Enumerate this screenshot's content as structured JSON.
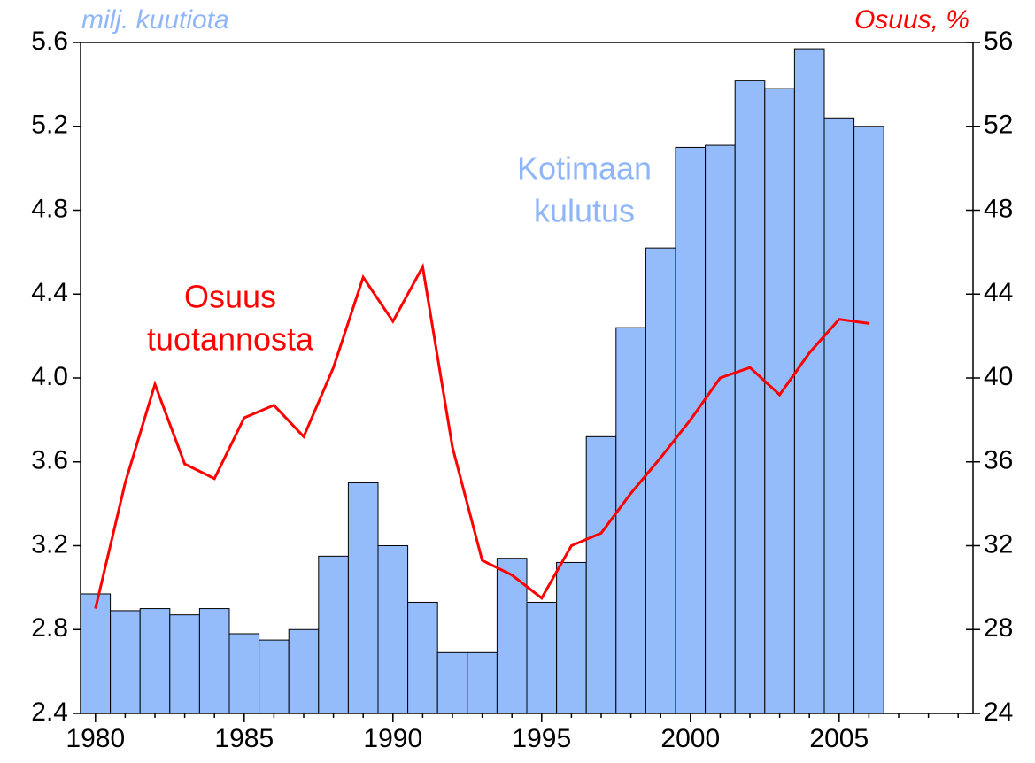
{
  "chart_data": {
    "type": "bar_line",
    "y_label": "milj. kuutiota",
    "y2_label": "Osuus, %",
    "annotations": [
      {
        "lines": [
          "Kotimaan",
          "kulutus"
        ],
        "color": "#8fb6f9"
      },
      {
        "lines": [
          "Osuus",
          "tuotannosta"
        ],
        "color": "#ff0000"
      }
    ],
    "x": [
      1980,
      1981,
      1982,
      1983,
      1984,
      1985,
      1986,
      1987,
      1988,
      1989,
      1990,
      1991,
      1992,
      1993,
      1994,
      1995,
      1996,
      1997,
      1998,
      1999,
      2000,
      2001,
      2002,
      2003,
      2004,
      2005,
      2006,
      2007,
      2008,
      2009
    ],
    "xlim": [
      1979.5,
      2009.5
    ],
    "xticks": [
      1980,
      1985,
      1990,
      1995,
      2000,
      2005
    ],
    "series": [
      {
        "name": "Kotimaan kulutus",
        "kind": "bar",
        "color": "#94bbfa",
        "values": [
          2.97,
          2.89,
          2.9,
          2.87,
          2.9,
          2.78,
          2.75,
          2.8,
          3.15,
          3.5,
          3.2,
          2.93,
          2.69,
          2.69,
          3.14,
          2.93,
          3.12,
          3.72,
          4.24,
          4.62,
          5.1,
          5.11,
          5.42,
          5.38,
          5.57,
          5.24,
          5.2,
          null,
          null,
          null
        ]
      },
      {
        "name": "Osuus tuotannosta",
        "kind": "line",
        "color": "#ff0000",
        "axis": "y2",
        "values": [
          29.0,
          35.0,
          39.7,
          35.9,
          35.2,
          38.1,
          38.7,
          37.2,
          40.5,
          44.8,
          42.7,
          45.3,
          36.7,
          31.3,
          30.6,
          29.5,
          32.0,
          32.6,
          34.5,
          36.2,
          38.0,
          40.0,
          40.5,
          39.2,
          41.2,
          42.8,
          42.6,
          null,
          null,
          null
        ]
      }
    ],
    "ylim": [
      2.4,
      5.6
    ],
    "yticks": [
      2.4,
      2.8,
      3.2,
      3.6,
      {
        "value": 4,
        "label": "4.0"
      },
      4.4,
      4.8,
      5.2,
      5.6
    ],
    "y2lim": [
      24,
      56
    ],
    "y2ticks": [
      24,
      28,
      32,
      36,
      40,
      44,
      48,
      52,
      56
    ]
  }
}
